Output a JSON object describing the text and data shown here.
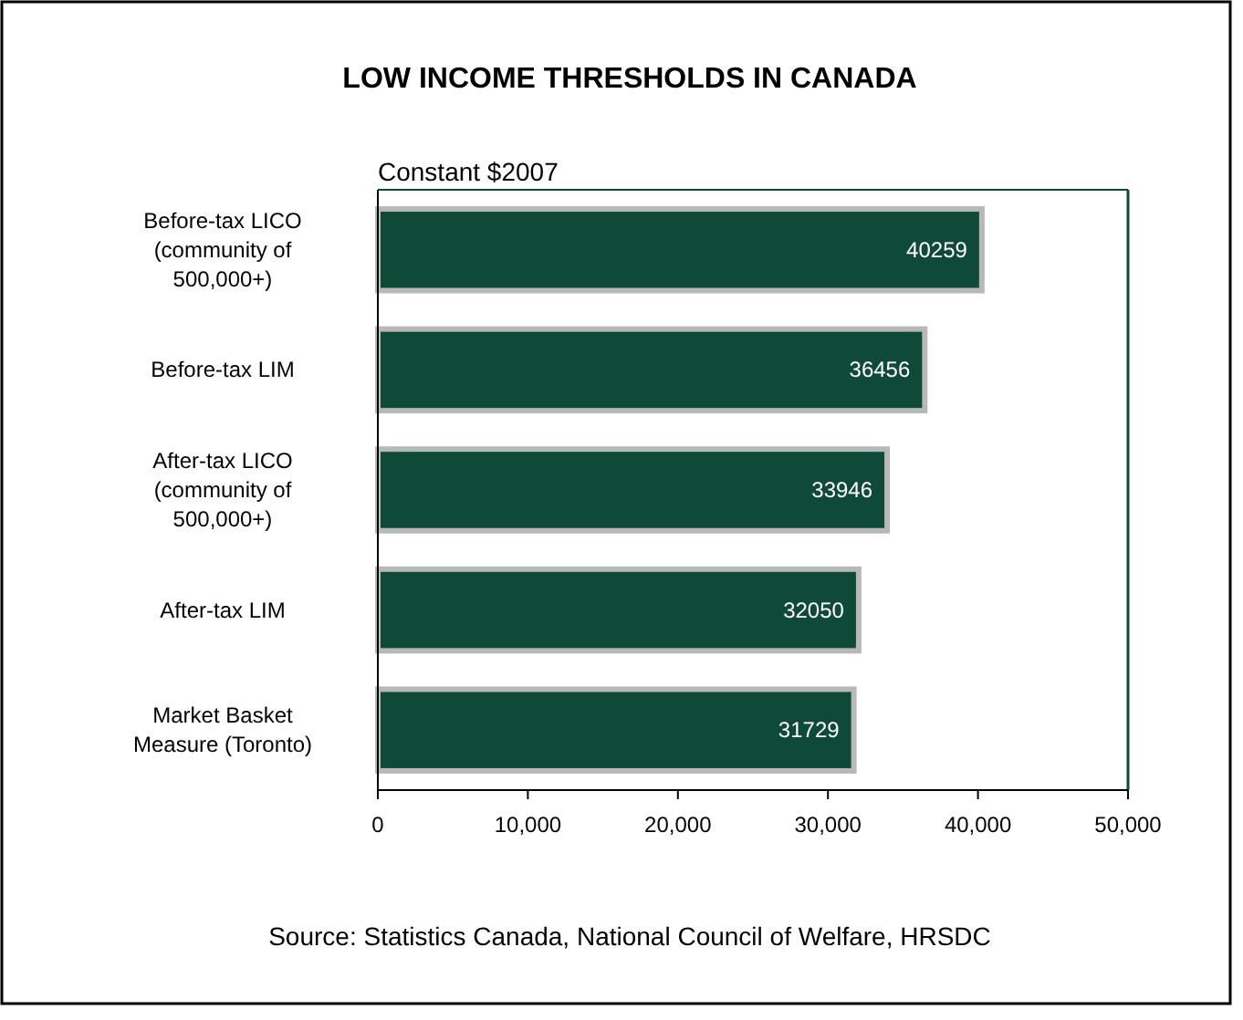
{
  "chart_data": {
    "type": "bar",
    "orientation": "horizontal",
    "title": "LOW INCOME THRESHOLDS IN CANADA",
    "subtitle": "Constant $2007",
    "categories": [
      "Before-tax LICO (community of 500,000+)",
      "Before-tax LIM",
      "After-tax LICO (community of 500,000+)",
      "After-tax LIM",
      "Market Basket Measure (Toronto)"
    ],
    "values": [
      40259,
      36456,
      33946,
      32050,
      31729
    ],
    "color": "#0f4a38",
    "data_labels": true,
    "grid": false,
    "xlim": [
      0,
      50000
    ],
    "xticks": [
      {
        "value": 0,
        "label": "0"
      },
      {
        "value": 10000,
        "label": "10,000"
      },
      {
        "value": 20000,
        "label": "20,000"
      },
      {
        "value": 30000,
        "label": "30,000"
      },
      {
        "value": 40000,
        "label": "40,000"
      },
      {
        "value": 50000,
        "label": "50,000"
      }
    ],
    "annotations": [
      "Source: Statistics Canada, National Council of Welfare, HRSDC"
    ]
  }
}
